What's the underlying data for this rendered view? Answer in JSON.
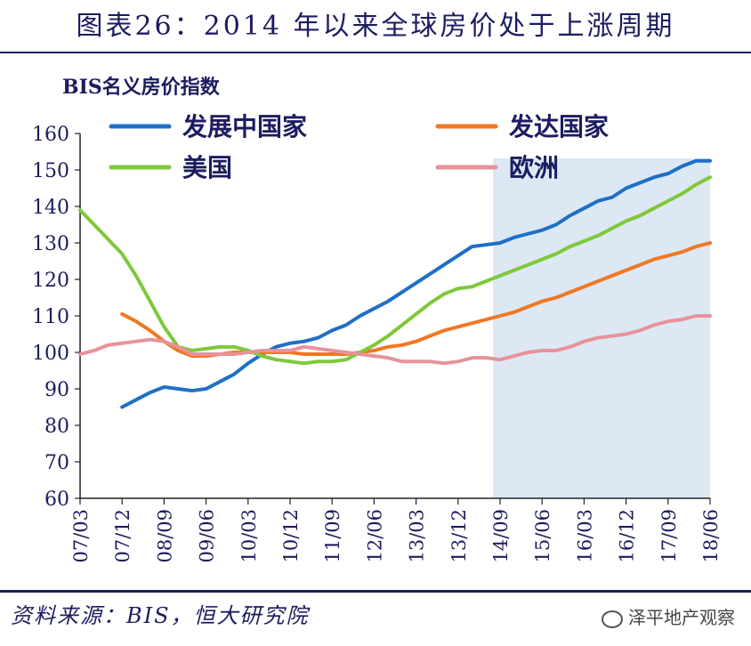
{
  "title": "图表26：2014 年以来全球房价处于上涨周期",
  "source": "资料来源：BIS，恒大研究院",
  "watermark": "泽平地产观察",
  "chart_data": {
    "type": "line",
    "ylabel": "BIS名义房价指数",
    "ylim": [
      60,
      160
    ],
    "yticks": [
      60,
      70,
      80,
      90,
      100,
      110,
      120,
      130,
      140,
      150,
      160
    ],
    "xlim": [
      0,
      45
    ],
    "categories": [
      "07/03",
      "07/12",
      "08/09",
      "09/06",
      "10/03",
      "10/12",
      "11/09",
      "12/06",
      "13/03",
      "13/12",
      "14/09",
      "15/06",
      "16/03",
      "16/12",
      "17/09",
      "18/06"
    ],
    "category_positions": [
      0,
      3,
      6,
      9,
      12,
      15,
      18,
      21,
      24,
      27,
      30,
      33,
      36,
      39,
      42,
      45
    ],
    "highlight_range": [
      29.5,
      45
    ],
    "series": [
      {
        "name": "发展中国家",
        "color": "#1f6fc6",
        "x": [
          3,
          4,
          5,
          6,
          7,
          8,
          9,
          10,
          11,
          12,
          13,
          14,
          15,
          16,
          17,
          18,
          19,
          20,
          21,
          22,
          23,
          24,
          25,
          26,
          27,
          28,
          29,
          30,
          31,
          32,
          33,
          34,
          35,
          36,
          37,
          38,
          39,
          40,
          41,
          42,
          43,
          44,
          45
        ],
        "y": [
          85,
          87,
          89,
          90.5,
          90,
          89.5,
          90,
          92,
          94,
          97,
          99.5,
          101.5,
          102.5,
          103,
          104,
          106,
          107.5,
          110,
          112,
          114,
          116.5,
          119,
          121.5,
          124,
          126.5,
          129,
          129.5,
          130,
          131.5,
          132.5,
          133.5,
          135,
          137.5,
          139.5,
          141.5,
          142.5,
          145,
          146.5,
          148,
          149,
          151,
          152.5,
          152.5
        ]
      },
      {
        "name": "发达国家",
        "color": "#f07822",
        "x": [
          3,
          4,
          5,
          6,
          7,
          8,
          9,
          10,
          11,
          12,
          13,
          14,
          15,
          16,
          17,
          18,
          19,
          20,
          21,
          22,
          23,
          24,
          25,
          26,
          27,
          28,
          29,
          30,
          31,
          32,
          33,
          34,
          35,
          36,
          37,
          38,
          39,
          40,
          41,
          42,
          43,
          44,
          45
        ],
        "y": [
          110.5,
          108.5,
          106,
          103,
          100.5,
          99,
          99,
          99.5,
          100,
          100,
          100,
          100,
          100,
          99.5,
          99.5,
          99.5,
          99.5,
          100,
          100.5,
          101.5,
          102,
          103,
          104.5,
          106,
          107,
          108,
          109,
          110,
          111,
          112.5,
          114,
          115,
          116.5,
          118,
          119.5,
          121,
          122.5,
          124,
          125.5,
          126.5,
          127.5,
          129,
          130
        ]
      },
      {
        "name": "美国",
        "color": "#7ec83a",
        "x": [
          0,
          1,
          2,
          3,
          4,
          5,
          6,
          7,
          8,
          9,
          10,
          11,
          12,
          13,
          14,
          15,
          16,
          17,
          18,
          19,
          20,
          21,
          22,
          23,
          24,
          25,
          26,
          27,
          28,
          29,
          30,
          31,
          32,
          33,
          34,
          35,
          36,
          37,
          38,
          39,
          40,
          41,
          42,
          43,
          44,
          45
        ],
        "y": [
          139,
          135,
          131,
          127,
          121,
          114,
          107,
          101.5,
          100.5,
          101,
          101.5,
          101.5,
          100.5,
          99,
          98,
          97.5,
          97,
          97.5,
          97.5,
          98,
          100,
          102,
          104.5,
          107.5,
          110.5,
          113.5,
          116,
          117.5,
          118,
          119.5,
          121,
          122.5,
          124,
          125.5,
          127,
          129,
          130.5,
          132,
          134,
          136,
          137.5,
          139.5,
          141.5,
          143.5,
          146,
          148
        ]
      },
      {
        "name": "欧洲",
        "color": "#e8929a",
        "x": [
          0,
          1,
          2,
          3,
          4,
          5,
          6,
          7,
          8,
          9,
          10,
          11,
          12,
          13,
          14,
          15,
          16,
          17,
          18,
          19,
          20,
          21,
          22,
          23,
          24,
          25,
          26,
          27,
          28,
          29,
          30,
          31,
          32,
          33,
          34,
          35,
          36,
          37,
          38,
          39,
          40,
          41,
          42,
          43,
          44,
          45
        ],
        "y": [
          99.5,
          100.5,
          102,
          102.5,
          103,
          103.5,
          103,
          101.5,
          99.5,
          99.5,
          99.5,
          99.5,
          100,
          100.5,
          100.5,
          100.5,
          101.5,
          101,
          100.5,
          100,
          99.5,
          99,
          98.5,
          97.5,
          97.5,
          97.5,
          97,
          97.5,
          98.5,
          98.5,
          98,
          99,
          100,
          100.5,
          100.5,
          101.5,
          103,
          104,
          104.5,
          105,
          106,
          107.5,
          108.5,
          109,
          110,
          110
        ]
      }
    ]
  }
}
